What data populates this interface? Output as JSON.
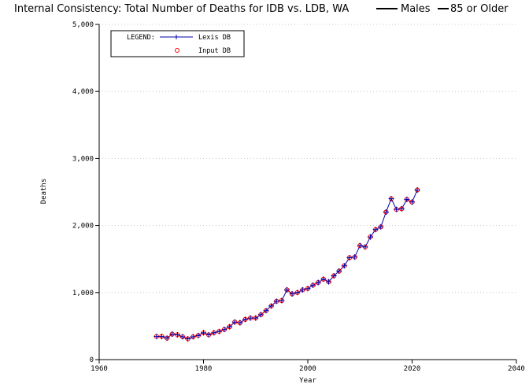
{
  "chart_data": {
    "type": "line",
    "title": "Internal Consistency: Total Number of Deaths for IDB vs. LDB, WA",
    "title_suffix_1": "Males",
    "title_suffix_2": "85 or Older",
    "xlabel": "Year",
    "ylabel": "Deaths",
    "xlim": [
      1960,
      2040
    ],
    "ylim": [
      0,
      5000
    ],
    "x_ticks": [
      1960,
      1980,
      2000,
      2020,
      2040
    ],
    "x_tick_labels": [
      "1960",
      "1980",
      "2000",
      "2020",
      "2040"
    ],
    "y_ticks": [
      0,
      1000,
      2000,
      3000,
      4000,
      5000
    ],
    "y_tick_labels": [
      "0",
      "1,000",
      "2,000",
      "3,000",
      "4,000",
      "5,000"
    ],
    "grid": "dotted, y only",
    "legend": {
      "placement": "top-left",
      "title": "LEGEND:",
      "entries": [
        {
          "label": "Lexis DB",
          "marker": "plus",
          "color": "#0000aa"
        },
        {
          "label": "Input DB",
          "marker": "circle",
          "color": "#ff0000"
        }
      ]
    },
    "x": [
      1971,
      1972,
      1973,
      1974,
      1975,
      1976,
      1977,
      1978,
      1979,
      1980,
      1981,
      1982,
      1983,
      1984,
      1985,
      1986,
      1987,
      1988,
      1989,
      1990,
      1991,
      1992,
      1993,
      1994,
      1995,
      1996,
      1997,
      1998,
      1999,
      2000,
      2001,
      2002,
      2003,
      2004,
      2005,
      2006,
      2007,
      2008,
      2009,
      2010,
      2011,
      2012,
      2013,
      2014,
      2015,
      2016,
      2017,
      2018,
      2019,
      2020,
      2021
    ],
    "series": [
      {
        "name": "Lexis DB",
        "color": "#0000aa",
        "marker": "plus",
        "values": [
          345,
          345,
          320,
          380,
          370,
          340,
          310,
          340,
          360,
          400,
          370,
          400,
          420,
          450,
          490,
          560,
          550,
          600,
          620,
          620,
          670,
          730,
          800,
          870,
          880,
          1040,
          980,
          1000,
          1040,
          1060,
          1110,
          1150,
          1200,
          1160,
          1250,
          1320,
          1400,
          1520,
          1530,
          1700,
          1680,
          1830,
          1940,
          1980,
          2200,
          2400,
          2240,
          2250,
          2390,
          2350,
          2530
        ]
      },
      {
        "name": "Input DB",
        "color": "#ff0000",
        "marker": "circle",
        "values": [
          345,
          345,
          320,
          380,
          370,
          340,
          310,
          340,
          360,
          400,
          370,
          400,
          420,
          450,
          490,
          560,
          550,
          600,
          620,
          620,
          670,
          730,
          800,
          870,
          880,
          1040,
          980,
          1000,
          1040,
          1060,
          1110,
          1150,
          1200,
          1160,
          1250,
          1320,
          1400,
          1520,
          1530,
          1700,
          1680,
          1830,
          1940,
          1980,
          2200,
          2400,
          2240,
          2250,
          2390,
          2350,
          2530
        ]
      }
    ]
  }
}
